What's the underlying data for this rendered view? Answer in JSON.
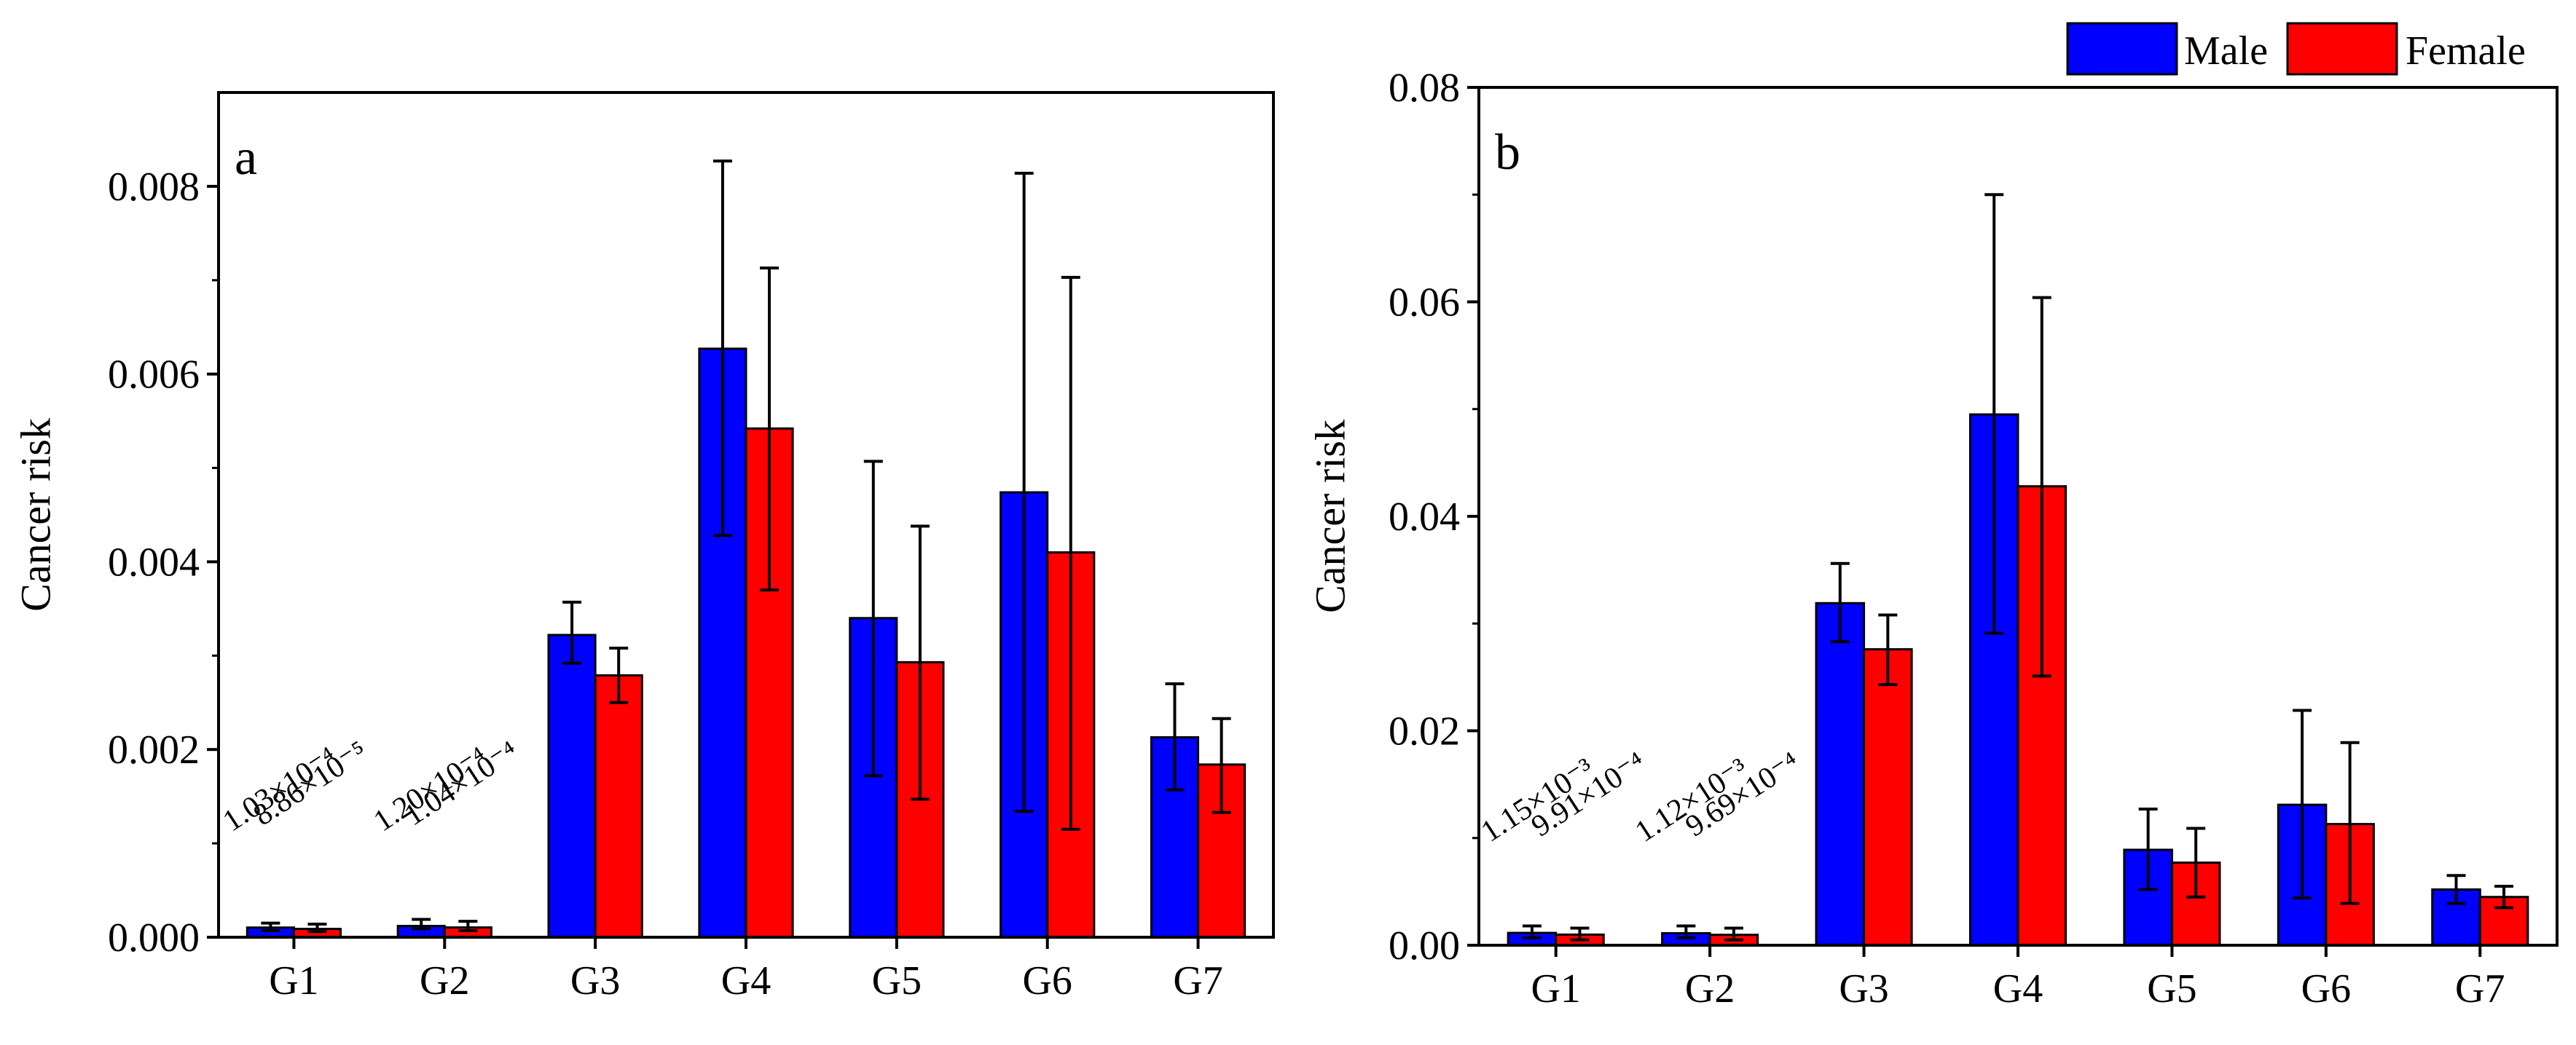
{
  "legend": {
    "items": [
      {
        "label": "Male",
        "color": "#0000ff"
      },
      {
        "label": "Female",
        "color": "#ff0000"
      }
    ]
  },
  "colors": {
    "male": "#0000ff",
    "female": "#ff0000",
    "axis": "#000000"
  },
  "chart_data": [
    {
      "type": "bar",
      "panel_label": "a",
      "ylabel": "Cancer risk",
      "xlabel": "",
      "categories": [
        "G1",
        "G2",
        "G3",
        "G4",
        "G5",
        "G6",
        "G7"
      ],
      "ylim": [
        0,
        0.009
      ],
      "yticks": [
        0,
        0.002,
        0.004,
        0.006,
        0.008
      ],
      "ytick_labels": [
        "0.000",
        "0.002",
        "0.004",
        "0.006",
        "0.008"
      ],
      "series": [
        {
          "name": "Male",
          "values": [
            0.000103,
            0.00012,
            0.00322,
            0.00627,
            0.0034,
            0.00474,
            0.00213
          ],
          "err_low": [
            7e-05,
            9e-05,
            0.00292,
            0.00428,
            0.00172,
            0.00134,
            0.00157
          ],
          "err_high": [
            0.00015,
            0.00019,
            0.00357,
            0.00827,
            0.00507,
            0.00814,
            0.0027
          ]
        },
        {
          "name": "Female",
          "values": [
            8.86e-05,
            0.000104,
            0.00279,
            0.00542,
            0.00293,
            0.0041,
            0.00184
          ],
          "err_low": [
            6e-05,
            7e-05,
            0.0025,
            0.0037,
            0.00147,
            0.00115,
            0.00133
          ],
          "err_high": [
            0.00014,
            0.00017,
            0.00308,
            0.00713,
            0.00438,
            0.00703,
            0.00233
          ]
        }
      ],
      "annotations": [
        {
          "text": "1.03×10⁻⁴",
          "category": "G1",
          "series": "Male"
        },
        {
          "text": "8.86×10⁻⁵",
          "category": "G1",
          "series": "Female"
        },
        {
          "text": "1.20×10⁻⁴",
          "category": "G2",
          "series": "Male"
        },
        {
          "text": "1.04×10⁻⁴",
          "category": "G2",
          "series": "Female"
        }
      ]
    },
    {
      "type": "bar",
      "panel_label": "b",
      "ylabel": "Cancer risk",
      "xlabel": "",
      "categories": [
        "G1",
        "G2",
        "G3",
        "G4",
        "G5",
        "G6",
        "G7"
      ],
      "ylim": [
        0,
        0.08
      ],
      "yticks": [
        0,
        0.02,
        0.04,
        0.06,
        0.08
      ],
      "ytick_labels": [
        "0.00",
        "0.02",
        "0.04",
        "0.06",
        "0.08"
      ],
      "series": [
        {
          "name": "Male",
          "values": [
            0.00115,
            0.00112,
            0.0319,
            0.0495,
            0.0089,
            0.0131,
            0.0052
          ],
          "err_low": [
            0.0007,
            0.0007,
            0.0283,
            0.0291,
            0.0052,
            0.0044,
            0.0039
          ],
          "err_high": [
            0.0018,
            0.0018,
            0.0356,
            0.07,
            0.0127,
            0.0219,
            0.0065
          ]
        },
        {
          "name": "Female",
          "values": [
            0.000991,
            0.000969,
            0.0276,
            0.0428,
            0.0077,
            0.0113,
            0.0045
          ],
          "err_low": [
            0.0005,
            0.0005,
            0.0243,
            0.0251,
            0.0045,
            0.0039,
            0.0035
          ],
          "err_high": [
            0.0016,
            0.0016,
            0.0308,
            0.0604,
            0.0109,
            0.0189,
            0.0055
          ]
        }
      ],
      "annotations": [
        {
          "text": "1.15×10⁻³",
          "category": "G1",
          "series": "Male"
        },
        {
          "text": "9.91×10⁻⁴",
          "category": "G1",
          "series": "Female"
        },
        {
          "text": "1.12×10⁻³",
          "category": "G2",
          "series": "Male"
        },
        {
          "text": "9.69×10⁻⁴",
          "category": "G2",
          "series": "Female"
        }
      ]
    }
  ]
}
